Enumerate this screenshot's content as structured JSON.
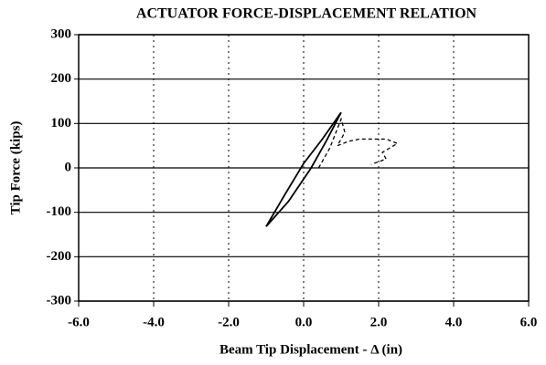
{
  "chart_data": {
    "type": "line",
    "title": "ACTUATOR FORCE-DISPLACEMENT RELATION",
    "x_label": "Beam Tip Displacement - Δ (in)",
    "y_label": "Tip Force (kips)",
    "xlim": [
      -6,
      6
    ],
    "xticks": [
      {
        "value": -6,
        "label": "-6.0"
      },
      {
        "value": -4,
        "label": "-4.0"
      },
      {
        "value": -2,
        "label": "-2.0"
      },
      {
        "value": 0,
        "label": "0.0"
      },
      {
        "value": 2,
        "label": "2.0"
      },
      {
        "value": 4,
        "label": "4.0"
      },
      {
        "value": 6,
        "label": "6.0"
      }
    ],
    "ylim": [
      -300,
      300
    ],
    "yticks": [
      -300,
      -200,
      -100,
      0,
      100,
      200,
      300
    ],
    "grid": true,
    "series": [
      {
        "color": "#000000",
        "dashed": false,
        "x": [
          -1.0,
          -0.4,
          0.2,
          0.6,
          1.0,
          0.5,
          0.0,
          -0.5,
          -1.0
        ],
        "values": [
          -132,
          -75,
          0,
          60,
          125,
          65,
          10,
          -60,
          -132
        ]
      },
      {
        "color": "#000000",
        "dashed": true,
        "x": [
          0.4,
          0.7,
          1.0,
          1.1,
          0.9,
          1.2,
          1.5,
          2.2,
          2.5,
          2.1,
          2.2,
          1.8
        ],
        "values": [
          0,
          45,
          110,
          80,
          50,
          60,
          65,
          65,
          55,
          35,
          20,
          8
        ]
      }
    ]
  }
}
